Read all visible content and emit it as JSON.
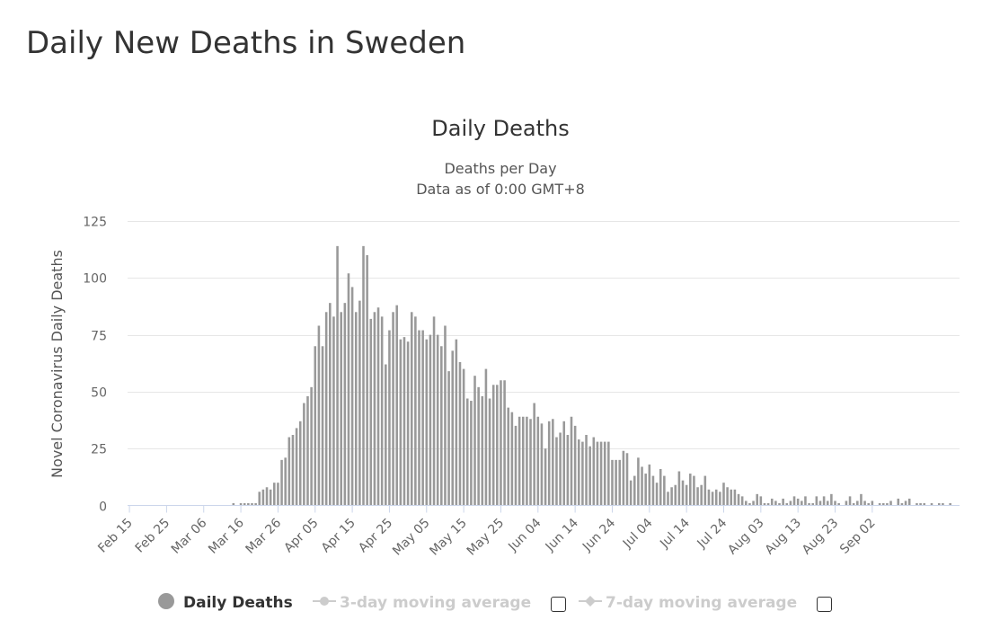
{
  "page": {
    "title": "Daily New Deaths in Sweden"
  },
  "chart_data": {
    "type": "bar",
    "title": "Daily Deaths",
    "subtitle_lines": [
      "Deaths per Day",
      "Data as of 0:00 GMT+8"
    ],
    "xlabel": "",
    "ylabel": "Novel Coronavirus Daily Deaths",
    "ylim": [
      0,
      125
    ],
    "yticks": [
      0,
      25,
      50,
      75,
      100,
      125
    ],
    "grid": true,
    "legend_position": "bottom",
    "bar_color": "#999999",
    "x_start": "Feb 15",
    "x_tick_labels": [
      "Feb 15",
      "Feb 25",
      "Mar 06",
      "Mar 16",
      "Mar 26",
      "Apr 05",
      "Apr 15",
      "Apr 25",
      "May 05",
      "May 15",
      "May 25",
      "Jun 04",
      "Jun 14",
      "Jun 24",
      "Jul 04",
      "Jul 14",
      "Jul 24",
      "Aug 03",
      "Aug 13",
      "Aug 23",
      "Sep 02"
    ],
    "values": [
      0,
      0,
      0,
      0,
      0,
      0,
      0,
      0,
      0,
      0,
      0,
      0,
      0,
      0,
      0,
      0,
      0,
      0,
      0,
      0,
      0,
      0,
      0,
      0,
      0,
      0,
      0,
      0,
      1,
      0,
      1,
      1,
      1,
      1,
      1,
      6,
      7,
      8,
      7,
      10,
      10,
      20,
      21,
      30,
      31,
      34,
      37,
      45,
      48,
      52,
      70,
      79,
      70,
      85,
      89,
      83,
      114,
      85,
      89,
      102,
      96,
      85,
      90,
      114,
      110,
      82,
      85,
      87,
      83,
      62,
      77,
      85,
      88,
      73,
      74,
      72,
      85,
      83,
      77,
      77,
      73,
      75,
      83,
      75,
      70,
      79,
      59,
      68,
      73,
      63,
      60,
      47,
      46,
      57,
      52,
      48,
      60,
      47,
      53,
      53,
      55,
      55,
      43,
      41,
      35,
      39,
      39,
      39,
      38,
      45,
      39,
      36,
      25,
      37,
      38,
      30,
      32,
      37,
      31,
      39,
      35,
      29,
      28,
      31,
      26,
      30,
      28,
      28,
      28,
      28,
      20,
      20,
      20,
      24,
      23,
      11,
      13,
      21,
      17,
      14,
      18,
      13,
      10,
      16,
      13,
      6,
      8,
      9,
      15,
      11,
      9,
      14,
      13,
      8,
      9,
      13,
      7,
      6,
      7,
      6,
      10,
      8,
      7,
      7,
      5,
      4,
      2,
      1,
      2,
      5,
      4,
      1,
      1,
      3,
      2,
      1,
      3,
      1,
      2,
      4,
      3,
      2,
      4,
      1,
      1,
      4,
      2,
      4,
      2,
      5,
      2,
      1,
      0,
      2,
      4,
      1,
      2,
      5,
      2,
      1,
      2,
      0,
      1,
      1,
      1,
      2,
      0,
      3,
      1,
      2,
      3,
      0,
      1,
      1,
      1,
      0,
      1,
      0,
      1,
      1,
      0,
      1,
      0,
      0
    ]
  },
  "legend": [
    {
      "label": "Daily Deaths",
      "color": "#999999",
      "active": true
    },
    {
      "label": "3-day moving average",
      "color": "#cccccc",
      "active": false
    },
    {
      "label": "7-day moving average",
      "color": "#cccccc",
      "active": false
    }
  ]
}
